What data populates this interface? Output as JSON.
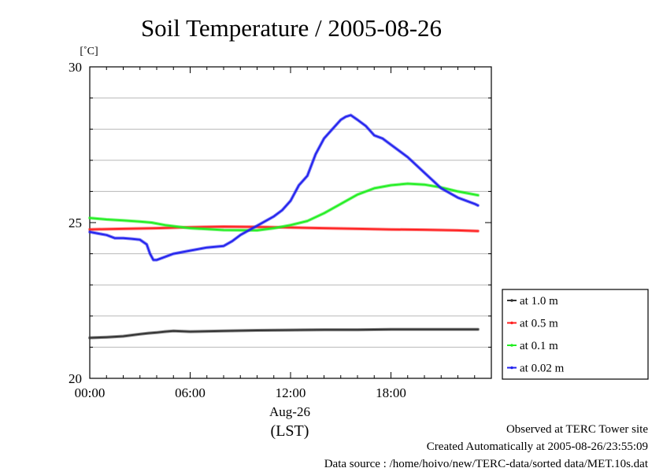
{
  "chart_data": {
    "type": "line",
    "title": "Soil Temperature / 2005-08-26",
    "y_unit": "[˚C]",
    "ylim": [
      20,
      30
    ],
    "y_ticks": [
      20,
      25,
      30
    ],
    "y_tick_labels": [
      "20",
      "25",
      "30"
    ],
    "y_minor_grid": [
      21,
      22,
      23,
      24,
      26,
      27,
      28,
      29
    ],
    "xlim": [
      0,
      24
    ],
    "x_ticks": [
      0,
      6,
      12,
      18
    ],
    "x_tick_labels": [
      "00:00",
      "06:00",
      "12:00",
      "18:00"
    ],
    "x_date_label": "Aug-26",
    "x_zone_label": "(LST)",
    "grid": true,
    "legend_position": "right",
    "series": [
      {
        "name": "at 1.0 m",
        "color": "#333333",
        "x": [
          0,
          1,
          2,
          3,
          3.5,
          4,
          4.5,
          5,
          6,
          8,
          10,
          12,
          14,
          16,
          18,
          20,
          22,
          23.2
        ],
        "y": [
          21.3,
          21.32,
          21.35,
          21.42,
          21.45,
          21.47,
          21.5,
          21.52,
          21.5,
          21.52,
          21.54,
          21.55,
          21.56,
          21.56,
          21.57,
          21.57,
          21.57,
          21.57
        ]
      },
      {
        "name": "at 0.5 m",
        "color": "#ff2020",
        "x": [
          0,
          2,
          4,
          6,
          8,
          10,
          12,
          14,
          16,
          18,
          20,
          22,
          23.2
        ],
        "y": [
          24.78,
          24.8,
          24.82,
          24.85,
          24.87,
          24.86,
          24.84,
          24.82,
          24.8,
          24.78,
          24.77,
          24.75,
          24.73
        ]
      },
      {
        "name": "at 0.1 m",
        "color": "#22ee22",
        "x": [
          0,
          1,
          2,
          3,
          3.7,
          4.5,
          6,
          8,
          10,
          11,
          12,
          13,
          14,
          15,
          16,
          17,
          18,
          19,
          20,
          21,
          22,
          23.2
        ],
        "y": [
          25.15,
          25.1,
          25.07,
          25.03,
          25.0,
          24.92,
          24.82,
          24.76,
          24.75,
          24.82,
          24.92,
          25.05,
          25.3,
          25.6,
          25.9,
          26.1,
          26.2,
          26.25,
          26.22,
          26.13,
          26.0,
          25.88
        ]
      },
      {
        "name": "at 0.02 m",
        "color": "#2222ee",
        "x": [
          0,
          0.5,
          1,
          1.5,
          2,
          2.5,
          3,
          3.4,
          3.6,
          3.8,
          4,
          4.5,
          5,
          6,
          7,
          8,
          8.5,
          9,
          10,
          11,
          11.5,
          12,
          12.5,
          13,
          13.5,
          14,
          14.5,
          15,
          15.3,
          15.6,
          16,
          16.5,
          17,
          17.5,
          18,
          19,
          20,
          21,
          22,
          23,
          23.2
        ],
        "y": [
          24.7,
          24.65,
          24.6,
          24.5,
          24.5,
          24.48,
          24.45,
          24.3,
          24.0,
          23.8,
          23.8,
          23.9,
          24.0,
          24.1,
          24.2,
          24.25,
          24.4,
          24.6,
          24.9,
          25.2,
          25.4,
          25.7,
          26.2,
          26.5,
          27.2,
          27.7,
          28.0,
          28.3,
          28.4,
          28.45,
          28.3,
          28.1,
          27.8,
          27.7,
          27.5,
          27.1,
          26.6,
          26.1,
          25.8,
          25.6,
          25.55
        ]
      }
    ]
  },
  "footer": {
    "line1": "Observed at TERC Tower site",
    "line2": "Created Automatically at 2005-08-26/23:55:09",
    "line3": "Data source : /home/hoivo/new/TERC-data/sorted  data/MET.10s.dat"
  }
}
